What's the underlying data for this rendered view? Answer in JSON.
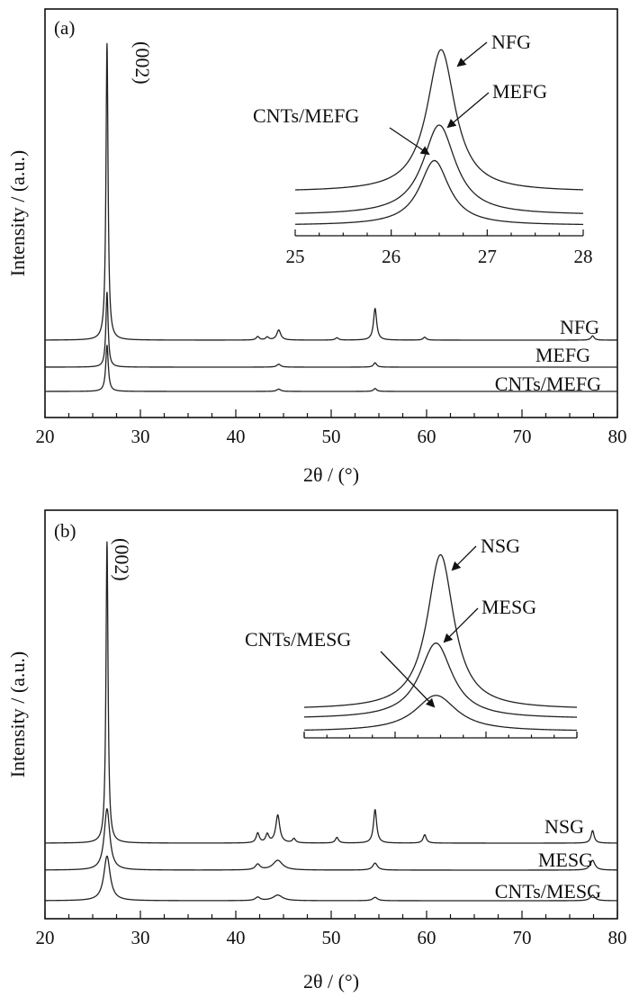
{
  "chart_data": [
    {
      "type": "line",
      "panel_label": "(a)",
      "xlabel": "2θ / (°)",
      "ylabel": "Intensity / (a.u.)",
      "xlim": [
        20,
        80
      ],
      "x_ticks": [
        "20",
        "30",
        "40",
        "50",
        "60",
        "70",
        "80"
      ],
      "peak_annotation": "(002)",
      "series": [
        {
          "name": "NFG",
          "baseline": 0.3,
          "peaks": [
            {
              "x": 26.5,
              "h": 10.3,
              "w": 0.13
            },
            {
              "x": 42.3,
              "h": 0.12,
              "w": 0.2
            },
            {
              "x": 43.3,
              "h": 0.1,
              "w": 0.2
            },
            {
              "x": 44.5,
              "h": 0.35,
              "w": 0.25
            },
            {
              "x": 50.6,
              "h": 0.08,
              "w": 0.2
            },
            {
              "x": 54.6,
              "h": 1.1,
              "w": 0.2
            },
            {
              "x": 59.8,
              "h": 0.1,
              "w": 0.2
            },
            {
              "x": 77.4,
              "h": 0.15,
              "w": 0.2
            }
          ]
        },
        {
          "name": "MEFG",
          "baseline": -0.2,
          "peaks": [
            {
              "x": 26.5,
              "h": 2.6,
              "w": 0.14
            },
            {
              "x": 44.5,
              "h": 0.1,
              "w": 0.25
            },
            {
              "x": 54.6,
              "h": 0.15,
              "w": 0.2
            }
          ]
        },
        {
          "name": "CNTs/MEFG",
          "baseline": -0.7,
          "peaks": [
            {
              "x": 26.5,
              "h": 1.6,
              "w": 0.16
            },
            {
              "x": 44.5,
              "h": 0.08,
              "w": 0.25
            },
            {
              "x": 54.6,
              "h": 0.1,
              "w": 0.2
            }
          ]
        }
      ],
      "inset": {
        "xlim": [
          25,
          28
        ],
        "x_ticks": [
          "25",
          "26",
          "27",
          "28"
        ],
        "series": [
          {
            "name": "NFG",
            "peak_x": 26.52,
            "peak_height": 1.0
          },
          {
            "name": "MEFG",
            "peak_x": 26.5,
            "peak_height": 0.55
          },
          {
            "name": "CNTs/MEFG",
            "peak_x": 26.45,
            "peak_height": 0.48
          }
        ]
      }
    },
    {
      "type": "line",
      "panel_label": "(b)",
      "xlabel": "2θ / (°)",
      "ylabel": "Intensity / (a.u.)",
      "xlim": [
        20,
        80
      ],
      "x_ticks": [
        "20",
        "30",
        "40",
        "50",
        "60",
        "70",
        "80"
      ],
      "peak_annotation": "(002)",
      "series": [
        {
          "name": "NSG",
          "baseline": 0.3,
          "peaks": [
            {
              "x": 26.5,
              "h": 10.8,
              "w": 0.13
            },
            {
              "x": 42.3,
              "h": 0.35,
              "w": 0.2
            },
            {
              "x": 43.3,
              "h": 0.3,
              "w": 0.2
            },
            {
              "x": 44.4,
              "h": 1.0,
              "w": 0.25
            },
            {
              "x": 46.1,
              "h": 0.15,
              "w": 0.2
            },
            {
              "x": 50.6,
              "h": 0.2,
              "w": 0.2
            },
            {
              "x": 54.6,
              "h": 1.2,
              "w": 0.2
            },
            {
              "x": 59.8,
              "h": 0.3,
              "w": 0.2
            },
            {
              "x": 77.4,
              "h": 0.45,
              "w": 0.2
            }
          ]
        },
        {
          "name": "MESG",
          "baseline": -0.25,
          "peaks": [
            {
              "x": 26.5,
              "h": 2.2,
              "w": 0.35
            },
            {
              "x": 42.3,
              "h": 0.2,
              "w": 0.3
            },
            {
              "x": 44.4,
              "h": 0.35,
              "w": 0.6
            },
            {
              "x": 54.6,
              "h": 0.25,
              "w": 0.3
            },
            {
              "x": 77.4,
              "h": 0.35,
              "w": 0.3
            }
          ]
        },
        {
          "name": "CNTs/MESG",
          "baseline": -0.9,
          "peaks": [
            {
              "x": 26.5,
              "h": 1.6,
              "w": 0.4
            },
            {
              "x": 42.3,
              "h": 0.12,
              "w": 0.3
            },
            {
              "x": 44.4,
              "h": 0.2,
              "w": 0.6
            },
            {
              "x": 54.6,
              "h": 0.12,
              "w": 0.3
            },
            {
              "x": 77.4,
              "h": 0.2,
              "w": 0.3
            }
          ]
        }
      ],
      "inset": {
        "xlim": [
          25,
          28
        ],
        "x_ticks": [],
        "series": [
          {
            "name": "NSG",
            "peak_x": 26.5,
            "peak_height": 1.0
          },
          {
            "name": "MESG",
            "peak_x": 26.45,
            "peak_height": 0.38
          },
          {
            "name": "CNTs/MESG",
            "peak_x": 26.45,
            "peak_height": 0.32
          }
        ]
      }
    }
  ]
}
